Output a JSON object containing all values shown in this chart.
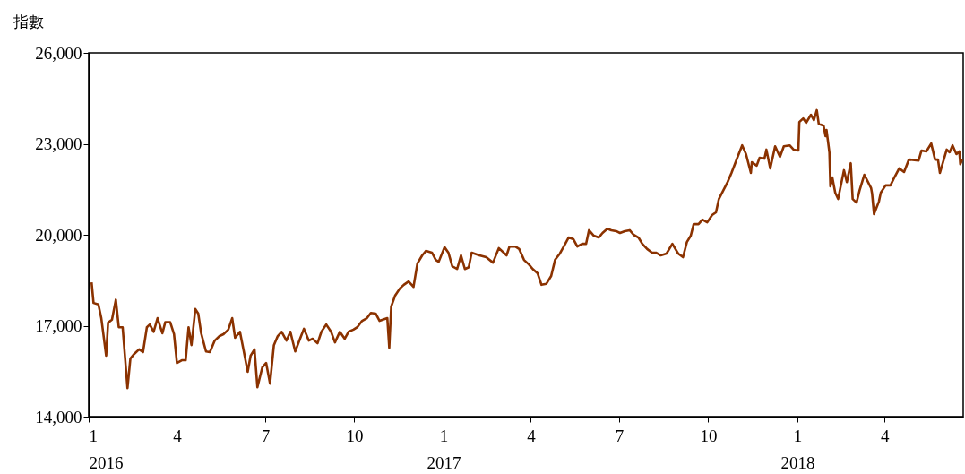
{
  "chart_data": {
    "type": "line",
    "ylabel": "指數",
    "x": [
      "2016-01-04",
      "2016-01-06",
      "2016-01-11",
      "2016-01-14",
      "2016-01-19",
      "2016-01-21",
      "2016-01-25",
      "2016-01-29",
      "2016-02-01",
      "2016-02-05",
      "2016-02-10",
      "2016-02-13",
      "2016-02-17",
      "2016-02-22",
      "2016-02-26",
      "2016-03-01",
      "2016-03-04",
      "2016-03-08",
      "2016-03-12",
      "2016-03-17",
      "2016-03-20",
      "2016-03-25",
      "2016-03-29",
      "2016-04-01",
      "2016-04-06",
      "2016-04-10",
      "2016-04-13",
      "2016-04-16",
      "2016-04-20",
      "2016-04-23",
      "2016-04-26",
      "2016-05-01",
      "2016-05-05",
      "2016-05-10",
      "2016-05-15",
      "2016-05-19",
      "2016-05-24",
      "2016-05-28",
      "2016-05-31",
      "2016-06-05",
      "2016-06-09",
      "2016-06-13",
      "2016-06-16",
      "2016-06-20",
      "2016-06-23",
      "2016-06-28",
      "2016-07-02",
      "2016-07-06",
      "2016-07-10",
      "2016-07-14",
      "2016-07-18",
      "2016-07-23",
      "2016-07-27",
      "2016-08-01",
      "2016-08-06",
      "2016-08-10",
      "2016-08-15",
      "2016-08-19",
      "2016-08-24",
      "2016-08-28",
      "2016-09-02",
      "2016-09-07",
      "2016-09-11",
      "2016-09-16",
      "2016-09-21",
      "2016-09-25",
      "2016-09-30",
      "2016-10-04",
      "2016-10-09",
      "2016-10-14",
      "2016-10-18",
      "2016-10-23",
      "2016-10-27",
      "2016-11-04",
      "2016-11-06",
      "2016-11-08",
      "2016-11-12",
      "2016-11-17",
      "2016-11-21",
      "2016-11-26",
      "2016-12-01",
      "2016-12-05",
      "2016-12-10",
      "2016-12-14",
      "2016-12-20",
      "2016-12-24",
      "2016-12-27",
      "2017-01-02",
      "2017-01-06",
      "2017-01-10",
      "2017-01-15",
      "2017-01-19",
      "2017-01-23",
      "2017-01-27",
      "2017-01-30",
      "2017-02-07",
      "2017-02-14",
      "2017-02-21",
      "2017-02-27",
      "2017-03-07",
      "2017-03-10",
      "2017-03-16",
      "2017-03-20",
      "2017-03-25",
      "2017-03-30",
      "2017-04-03",
      "2017-04-08",
      "2017-04-12",
      "2017-04-17",
      "2017-04-22",
      "2017-04-26",
      "2017-05-01",
      "2017-05-05",
      "2017-05-10",
      "2017-05-15",
      "2017-05-19",
      "2017-05-24",
      "2017-05-28",
      "2017-05-31",
      "2017-06-05",
      "2017-06-10",
      "2017-06-14",
      "2017-06-19",
      "2017-06-23",
      "2017-06-28",
      "2017-07-02",
      "2017-07-07",
      "2017-07-12",
      "2017-07-16",
      "2017-07-21",
      "2017-07-25",
      "2017-07-30",
      "2017-08-04",
      "2017-08-08",
      "2017-08-13",
      "2017-08-19",
      "2017-08-25",
      "2017-08-31",
      "2017-09-05",
      "2017-09-09",
      "2017-09-13",
      "2017-09-16",
      "2017-09-21",
      "2017-09-25",
      "2017-09-30",
      "2017-10-05",
      "2017-10-09",
      "2017-10-12",
      "2017-10-21",
      "2017-10-25",
      "2017-10-31",
      "2017-11-05",
      "2017-11-09",
      "2017-11-14",
      "2017-11-15",
      "2017-11-20",
      "2017-11-23",
      "2017-11-28",
      "2017-11-30",
      "2017-12-04",
      "2017-12-09",
      "2017-12-14",
      "2017-12-18",
      "2017-12-24",
      "2017-12-28",
      "2018-01-02",
      "2018-01-03",
      "2018-01-07",
      "2018-01-10",
      "2018-01-15",
      "2018-01-18",
      "2018-01-21",
      "2018-01-23",
      "2018-01-28",
      "2018-01-30",
      "2018-01-31",
      "2018-02-03",
      "2018-02-04",
      "2018-02-06",
      "2018-02-09",
      "2018-02-12",
      "2018-02-18",
      "2018-02-21",
      "2018-02-25",
      "2018-02-27",
      "2018-03-03",
      "2018-03-06",
      "2018-03-11",
      "2018-03-18",
      "2018-03-19",
      "2018-03-21",
      "2018-03-26",
      "2018-03-28",
      "2018-04-02",
      "2018-04-07",
      "2018-04-10",
      "2018-04-16",
      "2018-04-21",
      "2018-04-26",
      "2018-05-06",
      "2018-05-09",
      "2018-05-14",
      "2018-05-19",
      "2018-05-23",
      "2018-05-26",
      "2018-05-28",
      "2018-06-04",
      "2018-06-07",
      "2018-06-10",
      "2018-06-14",
      "2018-06-17",
      "2018-06-18",
      "2018-06-20"
    ],
    "series": [
      {
        "color": "#8b3200",
        "values": [
          18430,
          17750,
          17700,
          17250,
          16010,
          17100,
          17200,
          17860,
          16950,
          16950,
          14940,
          15920,
          16070,
          16220,
          16130,
          16950,
          17040,
          16800,
          17250,
          16750,
          17120,
          17120,
          16720,
          15770,
          15860,
          15860,
          16950,
          16360,
          17550,
          17400,
          16750,
          16150,
          16130,
          16510,
          16660,
          16720,
          16870,
          17250,
          16600,
          16800,
          16150,
          15480,
          16010,
          16220,
          14970,
          15620,
          15770,
          15090,
          16360,
          16660,
          16800,
          16510,
          16800,
          16150,
          16570,
          16900,
          16510,
          16570,
          16420,
          16800,
          17040,
          16800,
          16450,
          16800,
          16570,
          16800,
          16870,
          16950,
          17160,
          17250,
          17420,
          17400,
          17160,
          17250,
          16270,
          17630,
          17990,
          18230,
          18350,
          18460,
          18280,
          19050,
          19320,
          19470,
          19410,
          19170,
          19110,
          19590,
          19410,
          18960,
          18870,
          19320,
          18870,
          18930,
          19410,
          19320,
          19260,
          19080,
          19560,
          19320,
          19610,
          19610,
          19530,
          19170,
          19020,
          18870,
          18730,
          18350,
          18380,
          18640,
          19170,
          19380,
          19610,
          19910,
          19850,
          19610,
          19700,
          19700,
          20150,
          19970,
          19910,
          20060,
          20200,
          20150,
          20120,
          20060,
          20120,
          20150,
          20000,
          19910,
          19700,
          19530,
          19410,
          19410,
          19320,
          19380,
          19700,
          19380,
          19260,
          19760,
          19970,
          20350,
          20350,
          20500,
          20410,
          20650,
          20740,
          21180,
          21740,
          22040,
          22540,
          22950,
          22660,
          22040,
          22390,
          22280,
          22540,
          22510,
          22810,
          22190,
          22920,
          22570,
          22920,
          22950,
          22810,
          22780,
          23720,
          23840,
          23690,
          23960,
          23780,
          24110,
          23660,
          23600,
          23250,
          23460,
          22720,
          21600,
          21890,
          21390,
          21180,
          22130,
          21740,
          22360,
          21180,
          21060,
          21450,
          21980,
          21540,
          21360,
          20680,
          21090,
          21390,
          21630,
          21630,
          21830,
          22190,
          22070,
          22480,
          22450,
          22780,
          22750,
          23010,
          22480,
          22480,
          22040,
          22810,
          22720,
          22950,
          22660,
          22750,
          22330,
          22480
        ]
      }
    ],
    "xlim": [
      "2016-01-01",
      "2018-06-21"
    ],
    "xticks": [
      {
        "value": "2016-01-01",
        "label": "1\n2016"
      },
      {
        "value": "2016-04-01",
        "label": "4"
      },
      {
        "value": "2016-07-01",
        "label": "7"
      },
      {
        "value": "2016-10-01",
        "label": "10"
      },
      {
        "value": "2017-01-01",
        "label": "1\n2017"
      },
      {
        "value": "2017-04-01",
        "label": "4"
      },
      {
        "value": "2017-07-01",
        "label": "7"
      },
      {
        "value": "2017-10-01",
        "label": "10"
      },
      {
        "value": "2018-01-01",
        "label": "1\n2018"
      },
      {
        "value": "2018-04-01",
        "label": "4"
      }
    ],
    "ylim": [
      14000,
      26000
    ],
    "yticks": [
      {
        "value": 14000,
        "label": "14,000"
      },
      {
        "value": 17000,
        "label": "17,000"
      },
      {
        "value": 20000,
        "label": "20,000"
      },
      {
        "value": 23000,
        "label": "23,000"
      },
      {
        "value": 26000,
        "label": "26,000"
      }
    ],
    "grid": false,
    "legend": false,
    "marker": "none",
    "line_style": "solid"
  }
}
